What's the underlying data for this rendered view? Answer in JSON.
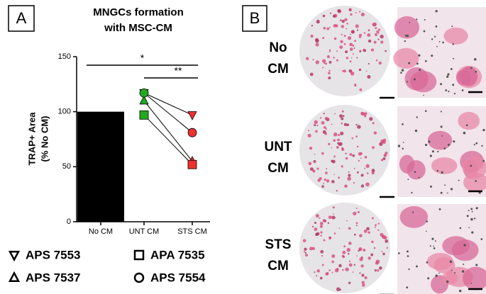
{
  "chart_data": {
    "type": "bar-paired",
    "panel_label": "A",
    "title_lines": [
      "MNGCs formation",
      "with MSC-CM"
    ],
    "ylabel_lines": [
      "TRAP+ Area",
      "(% No CM)"
    ],
    "categories": [
      "No CM",
      "UNT CM",
      "STS CM"
    ],
    "bar": {
      "values": [
        100,
        null,
        null
      ],
      "color": "#000000"
    },
    "marker_colors": [
      "#000000",
      "#1faa1f",
      "#ee3030"
    ],
    "series": [
      {
        "name": "APS 7553",
        "marker": "triangle-down",
        "values": [
          null,
          117,
          97
        ]
      },
      {
        "name": "APS 7537",
        "marker": "triangle-up",
        "values": [
          null,
          110,
          55
        ]
      },
      {
        "name": "APA 7535",
        "marker": "square",
        "values": [
          null,
          97,
          52
        ]
      },
      {
        "name": "APS 7554",
        "marker": "circle",
        "values": [
          null,
          117,
          81
        ]
      }
    ],
    "ylim": [
      0,
      150
    ],
    "yticks": [
      0,
      50,
      100,
      150
    ],
    "grid": false,
    "annotations": [
      {
        "text": "*",
        "between": [
          0,
          2
        ]
      },
      {
        "text": "**",
        "between": [
          1,
          2
        ]
      }
    ]
  },
  "panel_b": {
    "label": "B",
    "rows": [
      [
        "No",
        "CM"
      ],
      [
        "UNT",
        "CM"
      ],
      [
        "STS",
        "CM"
      ]
    ]
  }
}
